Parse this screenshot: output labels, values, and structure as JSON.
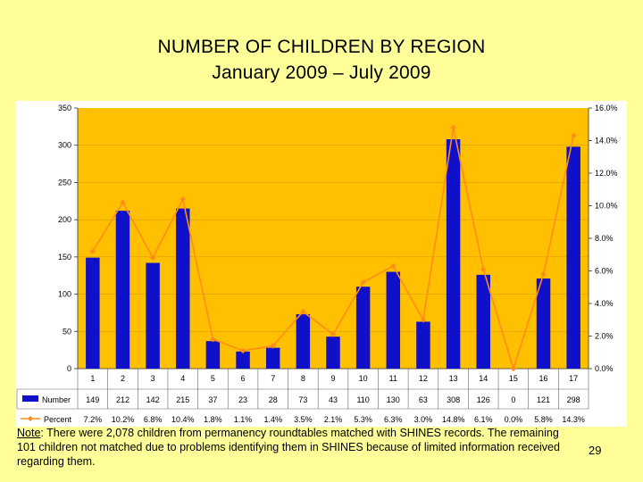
{
  "slide": {
    "title_line1": "NUMBER OF CHILDREN BY REGION",
    "title_line2": "January 2009 – July 2009",
    "note_label": "Note",
    "note_text": ": There were 2,078 children from permanency roundtables matched with SHINES records.  The remaining 101 children not matched due to problems identifying them in SHINES because of limited information received regarding them.",
    "page_number": "29"
  },
  "colors": {
    "plot_bg": "#ffc000",
    "bar": "#1010c8",
    "line": "#ff8c1a",
    "grid": "#c99a00"
  },
  "chart_data": {
    "type": "bar",
    "title": "",
    "categories": [
      "1",
      "2",
      "3",
      "4",
      "5",
      "6",
      "7",
      "8",
      "9",
      "10",
      "11",
      "12",
      "13",
      "14",
      "15",
      "16",
      "17"
    ],
    "series": [
      {
        "name": "Number",
        "type": "bar",
        "axis": "left",
        "values": [
          149,
          212,
          142,
          215,
          37,
          23,
          28,
          73,
          43,
          110,
          130,
          63,
          308,
          126,
          0,
          121,
          298
        ],
        "labels": [
          "149",
          "212",
          "142",
          "215",
          "37",
          "23",
          "28",
          "73",
          "43",
          "110",
          "130",
          "63",
          "308",
          "126",
          "0",
          "121",
          "298"
        ]
      },
      {
        "name": "Percent",
        "type": "line",
        "axis": "right",
        "values": [
          7.2,
          10.2,
          6.8,
          10.4,
          1.8,
          1.1,
          1.4,
          3.5,
          2.1,
          5.3,
          6.3,
          3.0,
          14.8,
          6.1,
          0.0,
          5.8,
          14.3
        ],
        "labels": [
          "7.2%",
          "10.2%",
          "6.8%",
          "10.4%",
          "1.8%",
          "1.1%",
          "1.4%",
          "3.5%",
          "2.1%",
          "5.3%",
          "6.3%",
          "3.0%",
          "14.8%",
          "6.1%",
          "0.0%",
          "5.8%",
          "14.3%"
        ]
      }
    ],
    "ylim": [
      0,
      350
    ],
    "y_ticks": [
      0,
      50,
      100,
      150,
      200,
      250,
      300,
      350
    ],
    "y_tick_labels": [
      "0",
      "50",
      "100",
      "150",
      "200",
      "250",
      "300",
      "350"
    ],
    "y2lim": [
      0,
      16
    ],
    "y2_ticks": [
      0,
      2,
      4,
      6,
      8,
      10,
      12,
      14,
      16
    ],
    "y2_tick_labels": [
      "0.0%",
      "2.0%",
      "4.0%",
      "6.0%",
      "8.0%",
      "10.0%",
      "12.0%",
      "14.0%",
      "16.0%"
    ],
    "grid": true,
    "legend": "data-table-below"
  }
}
